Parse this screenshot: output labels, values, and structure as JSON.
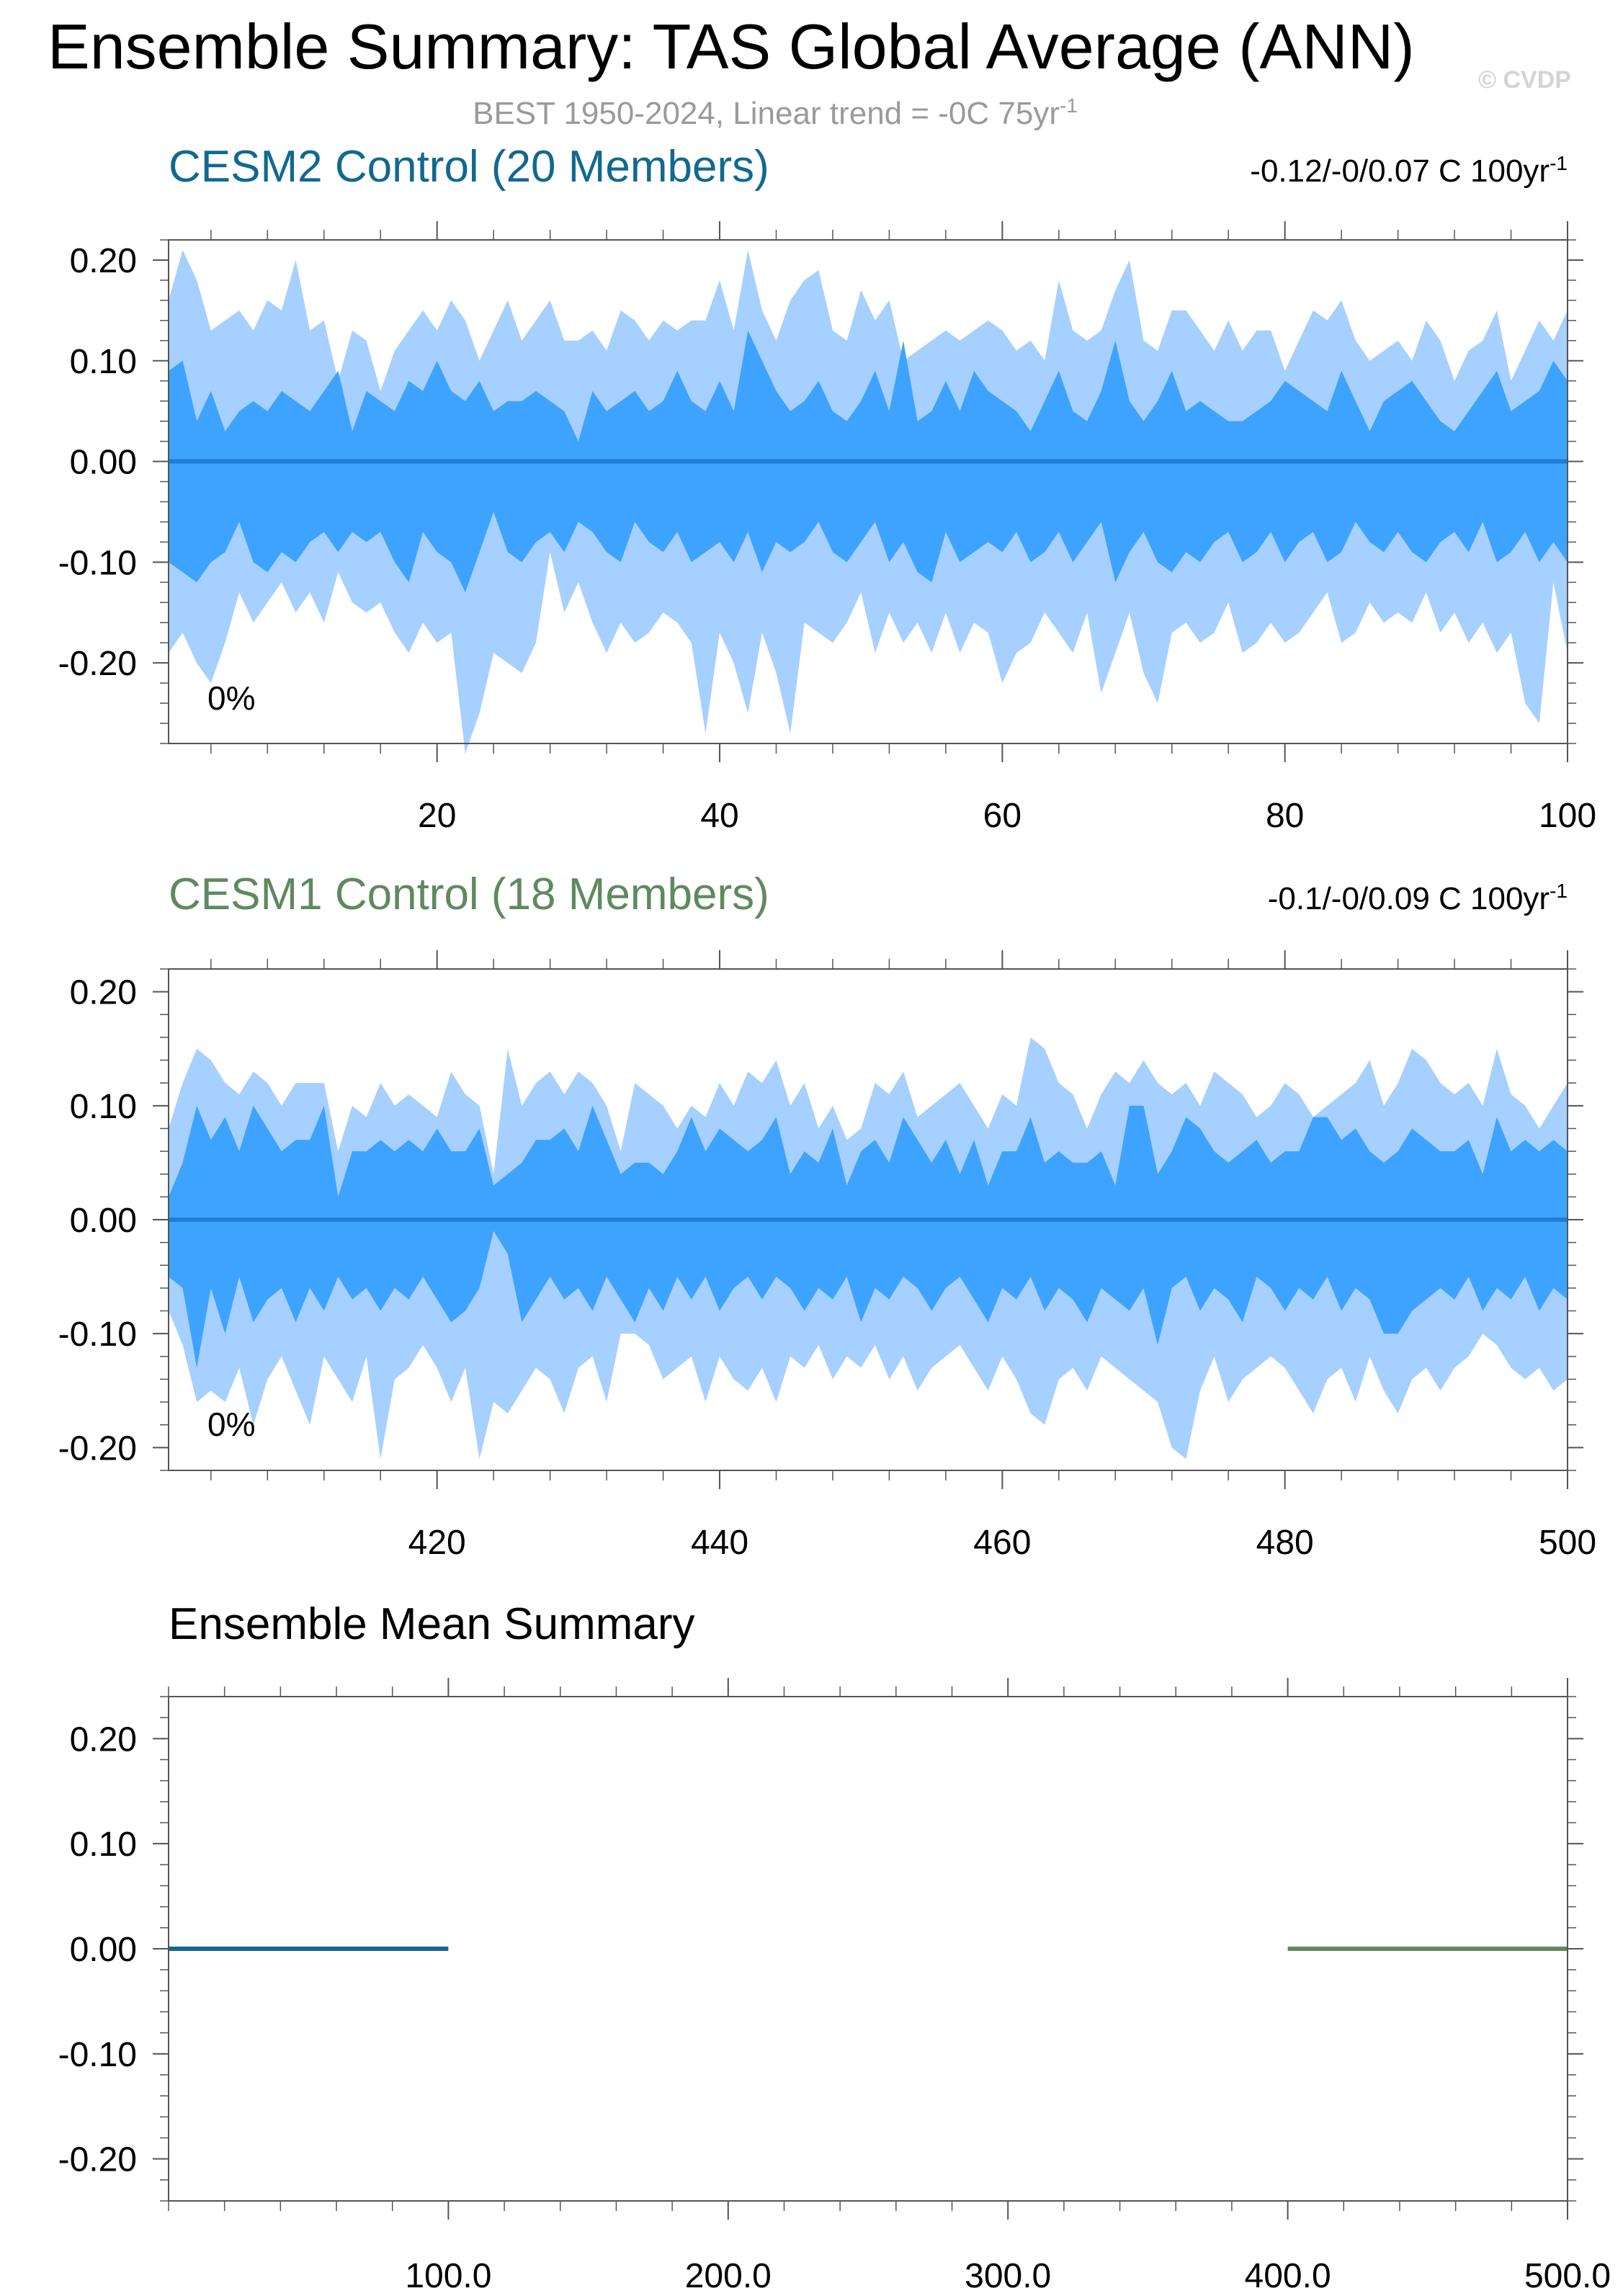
{
  "header": {
    "title": "Ensemble Summary: TAS Global Average (ANN)",
    "subtitle": "BEST 1950-2024, Linear trend = -0C 75yr",
    "subtitle_sup": "-1",
    "watermark": "© CVDP"
  },
  "colors": {
    "outer_band": "#a6d0ff",
    "inner_band": "#3ea3ff",
    "ensemble_mean_line": "#1e7ed6",
    "cesm2": "#11698f",
    "cesm1": "#5e8a5e",
    "axis": "#555555"
  },
  "chart_data": [
    {
      "type": "area",
      "title": "CESM2 Control (20 Members)",
      "trend_text": "-0.12/-0/0.07 C 100yr",
      "trend_sup": "-1",
      "annotation": "0%",
      "xlim": [
        1,
        100
      ],
      "ylim": [
        -0.28,
        0.22
      ],
      "xticks": [
        20,
        40,
        60,
        80,
        100
      ],
      "xtick_labels": [
        "20",
        "40",
        "60",
        "80",
        "100"
      ],
      "yticks": [
        0.2,
        0.1,
        0.0,
        -0.1,
        -0.2
      ],
      "ytick_labels": [
        "0.20",
        "0.10",
        "0.00",
        "-0.10",
        "-0.20"
      ],
      "x_start": 1,
      "series": [
        {
          "values": [
            0.16,
            0.21,
            0.18,
            0.13,
            0.14,
            0.15,
            0.13,
            0.16,
            0.15,
            0.2,
            0.13,
            0.14,
            0.08,
            0.13,
            0.12,
            0.07,
            0.11,
            0.13,
            0.15,
            0.13,
            0.16,
            0.14,
            0.1,
            0.13,
            0.16,
            0.12,
            0.14,
            0.16,
            0.12,
            0.12,
            0.13,
            0.11,
            0.15,
            0.14,
            0.12,
            0.14,
            0.13,
            0.14,
            0.14,
            0.18,
            0.13,
            0.21,
            0.15,
            0.12,
            0.16,
            0.18,
            0.19,
            0.13,
            0.12,
            0.17,
            0.14,
            0.16,
            0.1,
            0.11,
            0.12,
            0.13,
            0.12,
            0.13,
            0.14,
            0.13,
            0.11,
            0.12,
            0.1,
            0.18,
            0.13,
            0.12,
            0.13,
            0.17,
            0.2,
            0.12,
            0.11,
            0.15,
            0.15,
            0.13,
            0.11,
            0.14,
            0.11,
            0.13,
            0.13,
            0.09,
            0.12,
            0.15,
            0.14,
            0.16,
            0.12,
            0.1,
            0.11,
            0.12,
            0.1,
            0.14,
            0.12,
            0.08,
            0.11,
            0.12,
            0.15,
            0.08,
            0.11,
            0.14,
            0.12,
            0.15
          ]
        },
        {
          "values": [
            0.09,
            0.1,
            0.04,
            0.07,
            0.03,
            0.05,
            0.06,
            0.05,
            0.07,
            0.06,
            0.05,
            0.07,
            0.09,
            0.03,
            0.07,
            0.06,
            0.05,
            0.08,
            0.07,
            0.1,
            0.07,
            0.06,
            0.08,
            0.05,
            0.06,
            0.06,
            0.07,
            0.06,
            0.05,
            0.02,
            0.07,
            0.05,
            0.06,
            0.07,
            0.05,
            0.06,
            0.09,
            0.06,
            0.05,
            0.08,
            0.05,
            0.13,
            0.1,
            0.07,
            0.05,
            0.06,
            0.08,
            0.05,
            0.04,
            0.06,
            0.09,
            0.05,
            0.12,
            0.04,
            0.05,
            0.08,
            0.05,
            0.09,
            0.07,
            0.06,
            0.05,
            0.03,
            0.06,
            0.09,
            0.05,
            0.04,
            0.07,
            0.12,
            0.06,
            0.04,
            0.06,
            0.09,
            0.05,
            0.06,
            0.05,
            0.04,
            0.04,
            0.05,
            0.06,
            0.08,
            0.07,
            0.06,
            0.05,
            0.09,
            0.06,
            0.03,
            0.06,
            0.07,
            0.08,
            0.06,
            0.04,
            0.03,
            0.05,
            0.07,
            0.09,
            0.05,
            0.06,
            0.07,
            0.1,
            0.08
          ]
        },
        {
          "values": [
            -0.1,
            -0.11,
            -0.12,
            -0.1,
            -0.09,
            -0.06,
            -0.1,
            -0.11,
            -0.09,
            -0.1,
            -0.08,
            -0.07,
            -0.09,
            -0.07,
            -0.08,
            -0.07,
            -0.1,
            -0.12,
            -0.07,
            -0.09,
            -0.1,
            -0.13,
            -0.09,
            -0.05,
            -0.09,
            -0.1,
            -0.08,
            -0.07,
            -0.09,
            -0.06,
            -0.07,
            -0.09,
            -0.1,
            -0.06,
            -0.08,
            -0.09,
            -0.07,
            -0.1,
            -0.09,
            -0.08,
            -0.1,
            -0.07,
            -0.11,
            -0.08,
            -0.09,
            -0.08,
            -0.06,
            -0.09,
            -0.1,
            -0.08,
            -0.06,
            -0.1,
            -0.08,
            -0.11,
            -0.12,
            -0.07,
            -0.1,
            -0.09,
            -0.08,
            -0.09,
            -0.07,
            -0.1,
            -0.09,
            -0.07,
            -0.1,
            -0.08,
            -0.06,
            -0.12,
            -0.09,
            -0.07,
            -0.1,
            -0.11,
            -0.09,
            -0.1,
            -0.08,
            -0.07,
            -0.1,
            -0.09,
            -0.07,
            -0.1,
            -0.08,
            -0.07,
            -0.1,
            -0.09,
            -0.06,
            -0.08,
            -0.09,
            -0.07,
            -0.09,
            -0.1,
            -0.08,
            -0.07,
            -0.09,
            -0.06,
            -0.1,
            -0.09,
            -0.07,
            -0.1,
            -0.08,
            -0.1
          ]
        },
        {
          "values": [
            -0.19,
            -0.17,
            -0.2,
            -0.22,
            -0.18,
            -0.13,
            -0.16,
            -0.14,
            -0.12,
            -0.15,
            -0.13,
            -0.16,
            -0.11,
            -0.14,
            -0.15,
            -0.14,
            -0.17,
            -0.19,
            -0.16,
            -0.18,
            -0.17,
            -0.29,
            -0.25,
            -0.19,
            -0.2,
            -0.21,
            -0.18,
            -0.09,
            -0.15,
            -0.12,
            -0.16,
            -0.19,
            -0.16,
            -0.18,
            -0.17,
            -0.15,
            -0.16,
            -0.18,
            -0.27,
            -0.17,
            -0.2,
            -0.25,
            -0.17,
            -0.21,
            -0.27,
            -0.16,
            -0.17,
            -0.18,
            -0.16,
            -0.13,
            -0.19,
            -0.15,
            -0.18,
            -0.16,
            -0.19,
            -0.15,
            -0.19,
            -0.16,
            -0.17,
            -0.22,
            -0.19,
            -0.18,
            -0.15,
            -0.17,
            -0.19,
            -0.15,
            -0.23,
            -0.19,
            -0.15,
            -0.21,
            -0.24,
            -0.17,
            -0.16,
            -0.18,
            -0.17,
            -0.14,
            -0.19,
            -0.18,
            -0.16,
            -0.18,
            -0.17,
            -0.15,
            -0.13,
            -0.18,
            -0.17,
            -0.14,
            -0.16,
            -0.15,
            -0.16,
            -0.13,
            -0.17,
            -0.15,
            -0.18,
            -0.16,
            -0.19,
            -0.17,
            -0.24,
            -0.26,
            -0.12,
            -0.19
          ]
        },
        {
          "values": [
            0,
            0
          ]
        }
      ]
    },
    {
      "type": "area",
      "title": "CESM1 Control (18 Members)",
      "trend_text": "-0.1/-0/0.09 C 100yr",
      "trend_sup": "-1",
      "annotation": "0%",
      "xlim": [
        401,
        500
      ],
      "ylim": [
        -0.22,
        0.22
      ],
      "xticks": [
        420,
        440,
        460,
        480,
        500
      ],
      "xtick_labels": [
        "420",
        "440",
        "460",
        "480",
        "500"
      ],
      "yticks": [
        0.2,
        0.1,
        0.0,
        -0.1,
        -0.2
      ],
      "ytick_labels": [
        "0.20",
        "0.10",
        "0.00",
        "-0.10",
        "-0.20"
      ],
      "x_start": 401,
      "series": [
        {
          "values": [
            0.08,
            0.12,
            0.15,
            0.14,
            0.12,
            0.11,
            0.13,
            0.12,
            0.1,
            0.12,
            0.12,
            0.12,
            0.06,
            0.1,
            0.09,
            0.12,
            0.1,
            0.11,
            0.1,
            0.09,
            0.13,
            0.11,
            0.1,
            0.04,
            0.15,
            0.1,
            0.12,
            0.13,
            0.11,
            0.13,
            0.12,
            0.1,
            0.06,
            0.12,
            0.11,
            0.1,
            0.08,
            0.1,
            0.09,
            0.12,
            0.1,
            0.13,
            0.12,
            0.14,
            0.1,
            0.12,
            0.08,
            0.1,
            0.07,
            0.08,
            0.12,
            0.11,
            0.13,
            0.09,
            0.1,
            0.11,
            0.12,
            0.1,
            0.08,
            0.11,
            0.1,
            0.16,
            0.15,
            0.12,
            0.11,
            0.08,
            0.11,
            0.13,
            0.12,
            0.14,
            0.12,
            0.11,
            0.12,
            0.1,
            0.13,
            0.12,
            0.11,
            0.09,
            0.1,
            0.12,
            0.11,
            0.09,
            0.1,
            0.11,
            0.12,
            0.14,
            0.1,
            0.12,
            0.15,
            0.14,
            0.12,
            0.11,
            0.12,
            0.1,
            0.15,
            0.11,
            0.1,
            0.08,
            0.1,
            0.12
          ]
        },
        {
          "values": [
            0.02,
            0.05,
            0.1,
            0.07,
            0.09,
            0.06,
            0.1,
            0.08,
            0.06,
            0.07,
            0.07,
            0.1,
            0.02,
            0.06,
            0.06,
            0.07,
            0.06,
            0.07,
            0.06,
            0.08,
            0.06,
            0.06,
            0.08,
            0.03,
            0.04,
            0.05,
            0.07,
            0.07,
            0.08,
            0.06,
            0.1,
            0.07,
            0.04,
            0.05,
            0.05,
            0.04,
            0.06,
            0.09,
            0.06,
            0.08,
            0.07,
            0.06,
            0.07,
            0.09,
            0.04,
            0.06,
            0.05,
            0.08,
            0.03,
            0.06,
            0.07,
            0.05,
            0.09,
            0.07,
            0.05,
            0.07,
            0.04,
            0.07,
            0.03,
            0.06,
            0.06,
            0.09,
            0.05,
            0.06,
            0.05,
            0.05,
            0.06,
            0.03,
            0.1,
            0.1,
            0.04,
            0.06,
            0.09,
            0.08,
            0.06,
            0.05,
            0.06,
            0.07,
            0.05,
            0.06,
            0.06,
            0.09,
            0.09,
            0.07,
            0.08,
            0.06,
            0.05,
            0.06,
            0.08,
            0.07,
            0.06,
            0.06,
            0.07,
            0.04,
            0.09,
            0.06,
            0.07,
            0.06,
            0.07,
            0.06
          ]
        },
        {
          "values": [
            -0.05,
            -0.06,
            -0.13,
            -0.06,
            -0.1,
            -0.05,
            -0.09,
            -0.07,
            -0.06,
            -0.09,
            -0.06,
            -0.08,
            -0.05,
            -0.07,
            -0.06,
            -0.08,
            -0.06,
            -0.07,
            -0.05,
            -0.07,
            -0.09,
            -0.08,
            -0.06,
            -0.01,
            -0.03,
            -0.09,
            -0.07,
            -0.05,
            -0.07,
            -0.06,
            -0.08,
            -0.05,
            -0.07,
            -0.09,
            -0.06,
            -0.08,
            -0.05,
            -0.07,
            -0.05,
            -0.08,
            -0.06,
            -0.05,
            -0.07,
            -0.05,
            -0.06,
            -0.08,
            -0.06,
            -0.07,
            -0.05,
            -0.09,
            -0.06,
            -0.07,
            -0.05,
            -0.06,
            -0.08,
            -0.06,
            -0.05,
            -0.07,
            -0.09,
            -0.06,
            -0.07,
            -0.05,
            -0.08,
            -0.06,
            -0.07,
            -0.09,
            -0.06,
            -0.07,
            -0.08,
            -0.06,
            -0.11,
            -0.06,
            -0.05,
            -0.08,
            -0.06,
            -0.07,
            -0.09,
            -0.05,
            -0.06,
            -0.08,
            -0.06,
            -0.07,
            -0.05,
            -0.08,
            -0.06,
            -0.07,
            -0.1,
            -0.1,
            -0.08,
            -0.07,
            -0.06,
            -0.07,
            -0.05,
            -0.08,
            -0.06,
            -0.07,
            -0.05,
            -0.08,
            -0.06,
            -0.07
          ]
        },
        {
          "values": [
            -0.08,
            -0.11,
            -0.16,
            -0.15,
            -0.16,
            -0.13,
            -0.18,
            -0.14,
            -0.12,
            -0.15,
            -0.18,
            -0.12,
            -0.14,
            -0.16,
            -0.12,
            -0.21,
            -0.14,
            -0.13,
            -0.11,
            -0.13,
            -0.16,
            -0.13,
            -0.21,
            -0.16,
            -0.17,
            -0.15,
            -0.13,
            -0.14,
            -0.17,
            -0.13,
            -0.12,
            -0.16,
            -0.1,
            -0.1,
            -0.11,
            -0.14,
            -0.13,
            -0.12,
            -0.16,
            -0.12,
            -0.14,
            -0.15,
            -0.13,
            -0.16,
            -0.12,
            -0.13,
            -0.11,
            -0.14,
            -0.12,
            -0.13,
            -0.11,
            -0.14,
            -0.12,
            -0.15,
            -0.13,
            -0.12,
            -0.11,
            -0.13,
            -0.15,
            -0.12,
            -0.14,
            -0.17,
            -0.18,
            -0.14,
            -0.13,
            -0.15,
            -0.12,
            -0.13,
            -0.14,
            -0.15,
            -0.16,
            -0.2,
            -0.21,
            -0.15,
            -0.12,
            -0.16,
            -0.14,
            -0.13,
            -0.12,
            -0.13,
            -0.15,
            -0.17,
            -0.14,
            -0.13,
            -0.16,
            -0.12,
            -0.15,
            -0.17,
            -0.14,
            -0.13,
            -0.15,
            -0.13,
            -0.12,
            -0.1,
            -0.11,
            -0.13,
            -0.14,
            -0.13,
            -0.15,
            -0.14
          ]
        },
        {
          "values": [
            0,
            0
          ]
        }
      ]
    },
    {
      "type": "line",
      "title": "Ensemble Mean Summary",
      "xlim": [
        0,
        500
      ],
      "ylim": [
        -0.24,
        0.24
      ],
      "xticks": [
        100,
        200,
        300,
        400,
        500
      ],
      "xtick_labels": [
        "100.0",
        "200.0",
        "300.0",
        "400.0",
        "500.0"
      ],
      "yticks": [
        0.2,
        0.1,
        0.0,
        -0.1,
        -0.2
      ],
      "ytick_labels": [
        "0.20",
        "0.10",
        "0.00",
        "-0.10",
        "-0.20"
      ],
      "series": [
        {
          "x": [
            0,
            100
          ],
          "values": [
            0.0,
            0.0
          ]
        },
        {
          "x": [
            400,
            500
          ],
          "values": [
            0.0,
            0.0
          ]
        }
      ]
    }
  ]
}
